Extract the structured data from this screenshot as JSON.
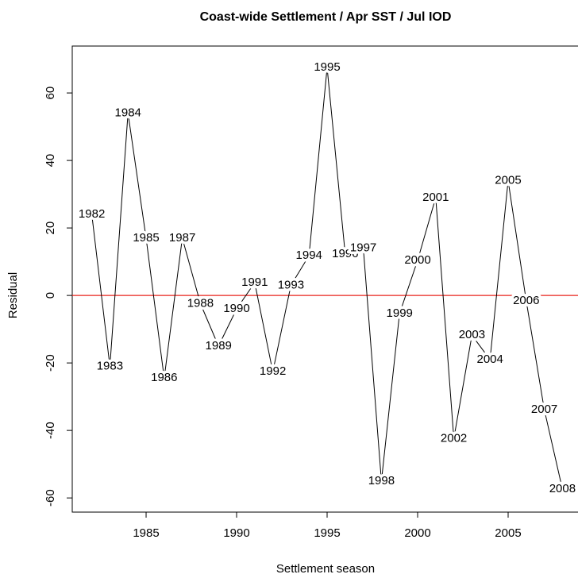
{
  "chart_data": {
    "type": "line",
    "title": "Coast-wide Settlement / Apr SST / Jul IOD",
    "x_label": "Settlement season",
    "y_label": "Residual",
    "x": [
      1982,
      1983,
      1984,
      1985,
      1986,
      1987,
      1988,
      1989,
      1990,
      1991,
      1992,
      1993,
      1994,
      1995,
      1996,
      1997,
      1998,
      1999,
      2000,
      2001,
      2002,
      2003,
      2004,
      2005,
      2006,
      2007,
      2008
    ],
    "series": [
      {
        "color": "#000000",
        "values": [
          24,
          -21,
          54,
          17,
          -24.5,
          17,
          -2.4,
          -15,
          -4,
          3.8,
          -22.6,
          3,
          11.8,
          67.5,
          12.2,
          14,
          -55,
          -5.4,
          10.4,
          29,
          -42.4,
          -11.8,
          -19,
          34,
          -1.6,
          -33.9,
          -57.4
        ]
      }
    ],
    "hline": {
      "value": 0,
      "color": "#e8201a"
    },
    "xlim": [
      1980.92,
      2008.86
    ],
    "ylim": [
      -64.2,
      73.9
    ],
    "xticks": [
      1985,
      1990,
      1995,
      2000,
      2005
    ],
    "yticks": [
      -60,
      -40,
      -20,
      0,
      20,
      40,
      60
    ]
  }
}
